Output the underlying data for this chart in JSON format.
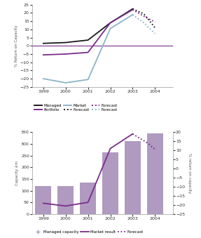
{
  "top": {
    "years_solid": [
      1999,
      2000,
      2001,
      2002,
      2003
    ],
    "years_dash": [
      2003,
      2003.5,
      2004
    ],
    "managed_solid": [
      1.5,
      2.0,
      3.5,
      14.0,
      22.5
    ],
    "managed_dash": [
      22.5,
      19.5,
      11.0
    ],
    "portfolio_solid": [
      -5.5,
      -5.0,
      -4.0,
      14.0,
      22.0
    ],
    "portfolio_dash": [
      22.0,
      18.0,
      14.5
    ],
    "market_solid": [
      -20.0,
      -22.5,
      -20.5,
      10.5,
      19.0
    ],
    "market_dash": [
      19.0,
      14.0,
      7.5
    ],
    "managed_color": "#1a1a1a",
    "portfolio_color": "#7b2d8b",
    "market_color": "#8cb4c8",
    "hline_color": "#7b2d8b",
    "ylabel": "% Return on Capacity",
    "ylim": [
      -25,
      25
    ],
    "yticks": [
      -25,
      -20,
      -15,
      -10,
      -5,
      0,
      5,
      10,
      15,
      20,
      25
    ],
    "xlim": [
      1998.5,
      2004.8
    ],
    "xticks": [
      1999,
      2000,
      2001,
      2002,
      2003,
      2004
    ]
  },
  "bottom": {
    "years": [
      1999,
      2000,
      2001,
      2002,
      2003,
      2004
    ],
    "bar_values": [
      120,
      120,
      135,
      265,
      310,
      345
    ],
    "bar_color": "#b09ac0",
    "line_years_solid": [
      1999,
      2000,
      2001,
      2002,
      2003
    ],
    "line_values_solid": [
      -19.0,
      -20.5,
      -18.5,
      11.0,
      19.0
    ],
    "line_years_dash": [
      2003,
      2003.33,
      2003.67,
      2004
    ],
    "line_values_dash": [
      19.0,
      16.5,
      14.0,
      10.5
    ],
    "dot_years": [
      2003.15,
      2003.3,
      2003.45,
      2003.6,
      2003.75,
      2003.9
    ],
    "dot_values": [
      18.0,
      17.0,
      16.0,
      15.5,
      14.5,
      13.5
    ],
    "line_color": "#7b2d8b",
    "ylabel_left": "Capacity £m",
    "ylabel_right": "% return on capacity",
    "ylim_left": [
      0,
      350
    ],
    "ylim_right": [
      -25,
      20
    ],
    "yticks_left": [
      0,
      50,
      100,
      150,
      200,
      250,
      300,
      350
    ],
    "yticks_right": [
      -25,
      -20,
      -15,
      -10,
      -5,
      0,
      5,
      10,
      15,
      20
    ],
    "xlim": [
      1998.5,
      2004.8
    ],
    "xticks": [
      1999,
      2000,
      2001,
      2002,
      2003,
      2004
    ]
  }
}
